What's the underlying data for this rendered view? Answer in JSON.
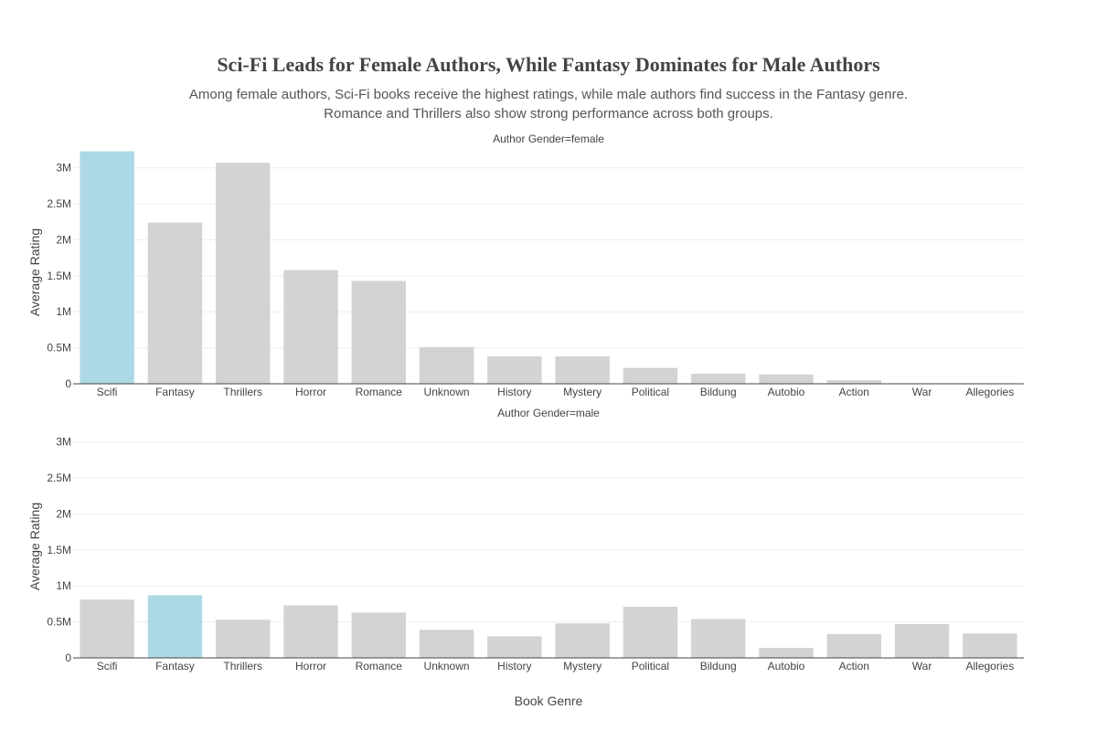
{
  "chart_data": {
    "type": "bar",
    "title": "Sci-Fi Leads for Female Authors, While Fantasy Dominates for Male Authors",
    "subtitle_lines": [
      "Among female authors, Sci-Fi books receive the highest ratings, while male authors find success in the Fantasy genre.",
      "Romance and Thrillers also show strong performance across both groups."
    ],
    "xlabel": "Book Genre",
    "ylabel": "Average Rating",
    "ylim": [
      0,
      3250000
    ],
    "yticks": [
      0,
      500000,
      1000000,
      1500000,
      2000000,
      2500000,
      3000000
    ],
    "ytick_labels": [
      "0",
      "0.5M",
      "1M",
      "1.5M",
      "2M",
      "2.5M",
      "3M"
    ],
    "grid": true,
    "colors": {
      "highlight": "#add8e6",
      "default": "#d3d3d3",
      "grid": "#eeeeee",
      "axis": "#444444"
    },
    "categories": [
      "Scifi",
      "Fantasy",
      "Thrillers",
      "Horror",
      "Romance",
      "Unknown",
      "History",
      "Mystery",
      "Political",
      "Bildung",
      "Autobio",
      "Action",
      "War",
      "Allegories"
    ],
    "panels": [
      {
        "label": "Author Gender=female",
        "highlight": "Scifi",
        "values": [
          3230000,
          2240000,
          3070000,
          1580000,
          1430000,
          510000,
          380000,
          380000,
          220000,
          140000,
          130000,
          50000,
          0,
          0
        ]
      },
      {
        "label": "Author Gender=male",
        "highlight": "Fantasy",
        "values": [
          810000,
          870000,
          530000,
          730000,
          630000,
          390000,
          300000,
          480000,
          710000,
          540000,
          140000,
          330000,
          470000,
          340000
        ]
      }
    ]
  }
}
